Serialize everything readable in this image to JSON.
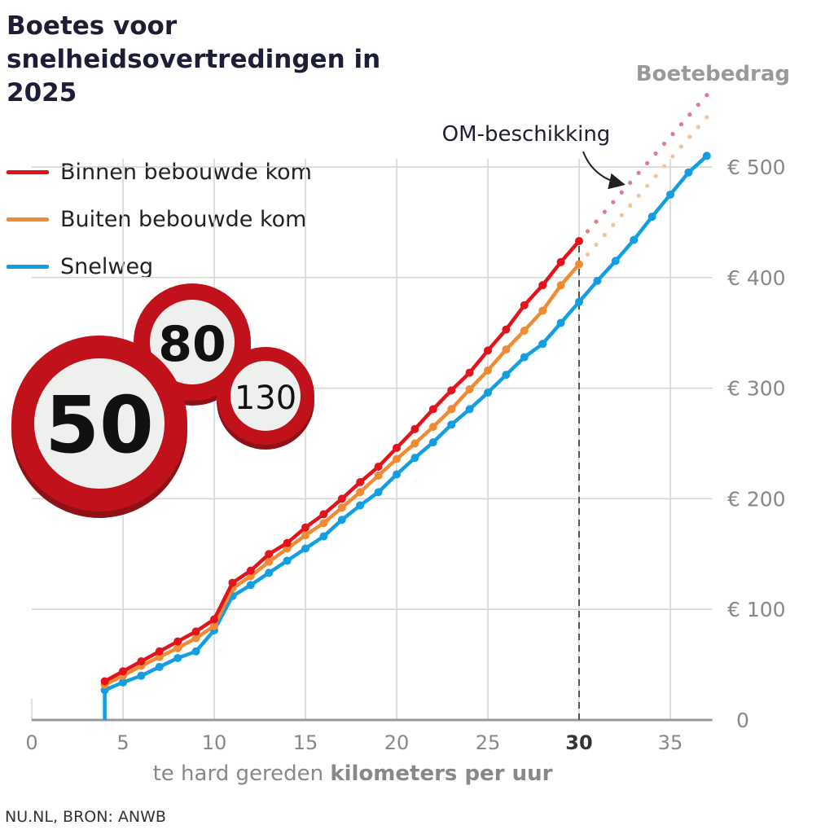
{
  "title": "Boetes voor snelheidsovertredingen in 2025",
  "source": "NU.NL, BRON: ANWB",
  "signs": [
    "50",
    "80",
    "130"
  ],
  "chart_data": {
    "type": "line",
    "title": "Boetes voor snelheidsovertredingen in 2025",
    "xlabel_prefix": "te hard gereden ",
    "xlabel_bold": "kilometers per uur",
    "ylabel": "Boetebedrag",
    "annotation": "OM-beschikking",
    "annotation_x": 30,
    "xlim": [
      0,
      37
    ],
    "ylim": [
      0,
      570
    ],
    "xticks": [
      0,
      5,
      10,
      15,
      20,
      25,
      30,
      35
    ],
    "xtick_labels": [
      "0",
      "5",
      "10",
      "15",
      "20",
      "25",
      "30",
      "35"
    ],
    "bold_xtick": "30",
    "yticks": [
      0,
      100,
      200,
      300,
      400,
      500
    ],
    "ytick_labels": [
      "0",
      "€ 100",
      "€ 200",
      "€ 300",
      "€ 400",
      "€ 500"
    ],
    "grid": true,
    "legend_position": "top-left",
    "series": [
      {
        "name": "Binnen bebouwde kom",
        "color": "#e3131b",
        "x": [
          4,
          5,
          6,
          7,
          8,
          9,
          10,
          11,
          12,
          13,
          14,
          15,
          16,
          17,
          18,
          19,
          20,
          21,
          22,
          23,
          24,
          25,
          26,
          27,
          28,
          29,
          30
        ],
        "values": [
          35,
          44,
          53,
          62,
          71,
          80,
          91,
          124,
          135,
          150,
          160,
          174,
          186,
          200,
          215,
          229,
          246,
          263,
          281,
          298,
          314,
          334,
          353,
          375,
          393,
          414,
          433
        ],
        "projection": {
          "x": [
            30,
            37
          ],
          "values": [
            433,
            565
          ]
        }
      },
      {
        "name": "Buiten bebouwde kom",
        "color": "#f08a33",
        "x": [
          4,
          5,
          6,
          7,
          8,
          9,
          10,
          11,
          12,
          13,
          14,
          15,
          16,
          17,
          18,
          19,
          20,
          21,
          22,
          23,
          24,
          25,
          26,
          27,
          28,
          29,
          30
        ],
        "values": [
          32,
          40,
          49,
          57,
          65,
          74,
          85,
          119,
          130,
          143,
          155,
          167,
          178,
          192,
          206,
          221,
          236,
          250,
          265,
          281,
          299,
          316,
          335,
          352,
          370,
          393,
          412
        ],
        "projection": {
          "x": [
            30,
            37
          ],
          "values": [
            412,
            545
          ]
        }
      },
      {
        "name": "Snelweg",
        "color": "#129ee0",
        "x": [
          4,
          4,
          5,
          6,
          7,
          8,
          9,
          10,
          11,
          12,
          13,
          14,
          15,
          16,
          17,
          18,
          19,
          20,
          21,
          22,
          23,
          24,
          25,
          26,
          27,
          28,
          29,
          30,
          31,
          32,
          33,
          34,
          35,
          36,
          37
        ],
        "values": [
          0,
          27,
          34,
          40,
          48,
          56,
          62,
          81,
          112,
          122,
          133,
          144,
          155,
          166,
          181,
          194,
          206,
          222,
          237,
          251,
          267,
          281,
          296,
          312,
          328,
          340,
          359,
          378,
          397,
          415,
          434,
          455,
          475,
          495,
          510
        ]
      }
    ]
  }
}
